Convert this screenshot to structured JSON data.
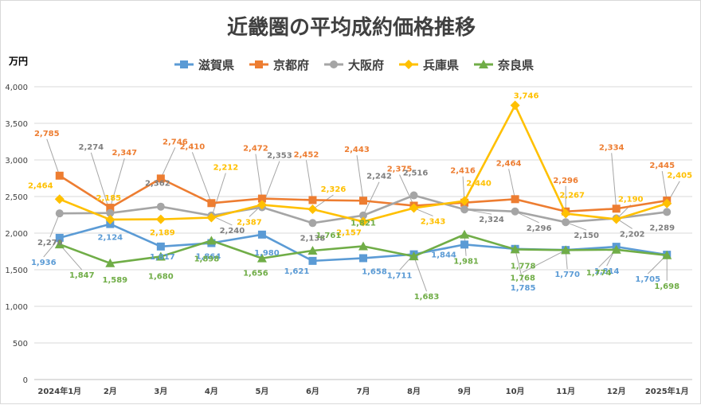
{
  "chart_data": {
    "type": "line",
    "title": "近畿圏の平均成約価格推移",
    "ylabel": "万円",
    "xlabel": "",
    "ylim": [
      0,
      4000
    ],
    "yticks": [
      0,
      500,
      1000,
      1500,
      2000,
      2500,
      3000,
      3500,
      4000
    ],
    "ytick_labels": [
      "0",
      "500",
      "1,000",
      "1,500",
      "2,000",
      "2,500",
      "3,000",
      "3,500",
      "4,000"
    ],
    "categories": [
      "2024年1月",
      "2月",
      "3月",
      "4月",
      "5月",
      "6月",
      "7月",
      "8月",
      "9月",
      "10月",
      "11月",
      "12月",
      "2025年1月"
    ],
    "grid": true,
    "legend_position": "top",
    "series": [
      {
        "name": "滋賀県",
        "color": "#5b9bd5",
        "marker": "square",
        "values": [
          1936,
          2124,
          1817,
          1864,
          1980,
          1621,
          1658,
          1711,
          1844,
          1785,
          1770,
          1814,
          1705
        ],
        "labels": [
          "1,936",
          "2,124",
          "1,817",
          "1,864",
          "1,980",
          "1,621",
          "1,658",
          "1,711",
          "1,844",
          "1,785",
          "1,770",
          "1,814",
          "1,705"
        ]
      },
      {
        "name": "京都府",
        "color": "#ed7d31",
        "marker": "square",
        "values": [
          2785,
          2347,
          2746,
          2410,
          2472,
          2452,
          2443,
          2375,
          2416,
          2464,
          2296,
          2334,
          2445
        ],
        "labels": [
          "2,785",
          "2,347",
          "2,746",
          "2,410",
          "2,472",
          "2,452",
          "2,443",
          "2,375",
          "2,416",
          "2,464",
          "2,296",
          "2,334",
          "2,445"
        ]
      },
      {
        "name": "大阪府",
        "color": "#a5a5a5",
        "marker": "circle",
        "values": [
          2270,
          2274,
          2362,
          2240,
          2353,
          2138,
          2242,
          2516,
          2324,
          2296,
          2150,
          2202,
          2289
        ],
        "labels": [
          "2,270",
          "2,274",
          "2,362",
          "2,240",
          "2,353",
          "2,138",
          "2,242",
          "2,516",
          "2,324",
          "2,296",
          "2,150",
          "2,202",
          "2,289"
        ]
      },
      {
        "name": "兵庫県",
        "color": "#ffc000",
        "marker": "diamond",
        "values": [
          2464,
          2185,
          2189,
          2212,
          2387,
          2326,
          2157,
          2343,
          2440,
          3746,
          2267,
          2190,
          2405
        ],
        "labels": [
          "2,464",
          "2,185",
          "2,189",
          "2,212",
          "2,387",
          "2,326",
          "2,157",
          "2,343",
          "2,440",
          "3,746",
          "2,267",
          "2,190",
          "2,405"
        ]
      },
      {
        "name": "奈良県",
        "color": "#70ad47",
        "marker": "triangle",
        "values": [
          1847,
          1589,
          1680,
          1898,
          1656,
          1761,
          1821,
          1683,
          1981,
          1778,
          1768,
          1774,
          1698
        ],
        "labels": [
          "1,847",
          "1,589",
          "1,680",
          "1,898",
          "1,656",
          "1,761",
          "1,821",
          "1,683",
          "1,981",
          "1,778",
          "1,768",
          "1,774",
          "1,698"
        ]
      }
    ]
  }
}
